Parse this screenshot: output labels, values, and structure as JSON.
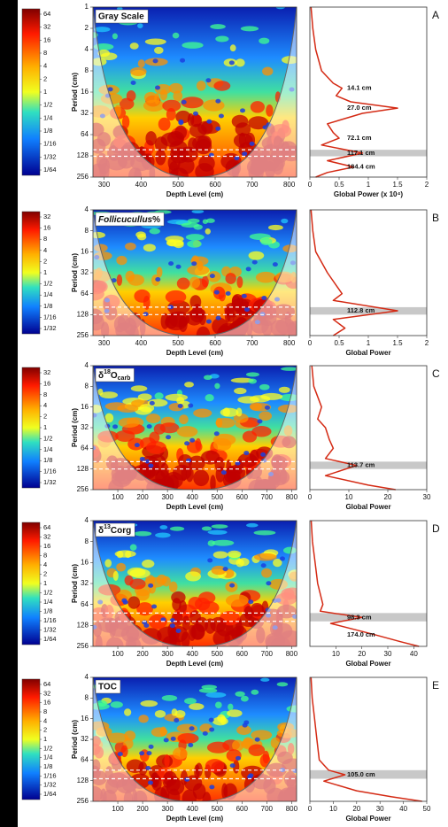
{
  "chart_data": [
    {
      "type": "wavelet",
      "panel": "A",
      "title": "Gray Scale",
      "xlabel": "Depth Level (cm)",
      "ylabel": "Period (cm)",
      "colorbar_ticks": [
        64,
        32,
        16,
        8,
        4,
        2,
        1,
        {
          "value": 0.5,
          "label": "1/2"
        },
        {
          "value": 0.25,
          "label": "1/4"
        },
        {
          "value": 0.125,
          "label": "1/8"
        },
        {
          "value": 0.0625,
          "label": "1/16"
        },
        {
          "value": 0.03125,
          "label": "1/32"
        },
        {
          "value": 0.015625,
          "label": "1/64"
        }
      ],
      "xlim": [
        270,
        820
      ],
      "xticks": [
        300,
        400,
        500,
        600,
        700,
        800
      ],
      "ylim": [
        1,
        256
      ],
      "yticks": [
        1,
        2,
        4,
        8,
        16,
        32,
        64,
        128,
        256
      ]
    },
    {
      "type": "line",
      "xlabel": "Global Power (x 10⁴)",
      "xlim": [
        0,
        2
      ],
      "xticks": [
        0,
        0.5,
        1,
        1.5,
        2
      ],
      "ylim": [
        1,
        256
      ],
      "color": "#d42a14",
      "periods": [
        1,
        2,
        4,
        8,
        12,
        14.1,
        18,
        22,
        27,
        32,
        45,
        60,
        72.1,
        90,
        117.1,
        150,
        184.4,
        220,
        256
      ],
      "values": [
        0.02,
        0.05,
        0.1,
        0.2,
        0.4,
        0.55,
        0.45,
        0.7,
        1.5,
        0.9,
        0.3,
        0.4,
        0.5,
        0.2,
        0.9,
        0.3,
        0.75,
        0.3,
        0.1
      ],
      "band": [
        105,
        130
      ],
      "annotations": [
        {
          "label": "14.1 cm",
          "value": 14.1
        },
        {
          "label": "27.0 cm",
          "value": 27.0
        },
        {
          "label": "72.1 cm",
          "value": 72.1
        },
        {
          "label": "117.1 cm",
          "value": 117.1
        },
        {
          "label": "184.4 cm",
          "value": 184.4
        }
      ]
    },
    {
      "type": "wavelet",
      "panel": "B",
      "title": [
        "Follicucullus",
        "%"
      ],
      "xlabel": "Depth Level (cm)",
      "ylabel": "Period (cm)",
      "colorbar_ticks": [
        32,
        16,
        8,
        4,
        2,
        1,
        {
          "value": 0.5,
          "label": "1/2"
        },
        {
          "value": 0.25,
          "label": "1/4"
        },
        {
          "value": 0.125,
          "label": "1/8"
        },
        {
          "value": 0.0625,
          "label": "1/16"
        },
        {
          "value": 0.03125,
          "label": "1/32"
        }
      ],
      "xlim": [
        270,
        820
      ],
      "xticks": [
        300,
        400,
        500,
        600,
        700,
        800
      ],
      "ylim": [
        4,
        256
      ],
      "yticks": [
        4,
        8,
        16,
        32,
        64,
        128,
        256
      ]
    },
    {
      "type": "line",
      "xlabel": "Global Power",
      "xlim": [
        0,
        2
      ],
      "xticks": [
        0,
        0.5,
        1,
        1.5,
        2
      ],
      "ylim": [
        4,
        256
      ],
      "color": "#d42a14",
      "periods": [
        4,
        8,
        16,
        32,
        64,
        80,
        112.8,
        150,
        200,
        256
      ],
      "values": [
        0.02,
        0.05,
        0.1,
        0.3,
        0.55,
        0.4,
        1.5,
        0.4,
        0.6,
        0.4
      ],
      "band": [
        100,
        128
      ],
      "annotations": [
        {
          "label": "112.8 cm",
          "value": 112.8
        }
      ]
    },
    {
      "type": "wavelet",
      "panel": "C",
      "title": [
        "δ",
        "18",
        "O",
        "carb"
      ],
      "xlabel": "Depth Level (cm)",
      "ylabel": "Period (cm)",
      "colorbar_ticks": [
        32,
        16,
        8,
        4,
        2,
        1,
        {
          "value": 0.5,
          "label": "1/2"
        },
        {
          "value": 0.25,
          "label": "1/4"
        },
        {
          "value": 0.125,
          "label": "1/8"
        },
        {
          "value": 0.0625,
          "label": "1/16"
        },
        {
          "value": 0.03125,
          "label": "1/32"
        }
      ],
      "xlim": [
        0,
        820
      ],
      "xticks": [
        100,
        200,
        300,
        400,
        500,
        600,
        700,
        800
      ],
      "ylim": [
        4,
        256
      ],
      "yticks": [
        4,
        8,
        16,
        32,
        64,
        128,
        256
      ]
    },
    {
      "type": "line",
      "xlabel": "Global Power",
      "xlim": [
        0,
        30
      ],
      "xticks": [
        0,
        10,
        20,
        30
      ],
      "ylim": [
        4,
        256
      ],
      "color": "#d42a14",
      "periods": [
        4,
        8,
        16,
        24,
        32,
        48,
        64,
        90,
        113.7,
        160,
        220,
        256
      ],
      "values": [
        0.5,
        1,
        3,
        2,
        4,
        5,
        6,
        4,
        12,
        4,
        15,
        22
      ],
      "band": [
        100,
        128
      ],
      "annotations": [
        {
          "label": "113.7 cm",
          "value": 113.7
        }
      ]
    },
    {
      "type": "wavelet",
      "panel": "D",
      "title": [
        "δ",
        "13",
        "Corg"
      ],
      "xlabel": "Depth Level (cm)",
      "ylabel": "Period (cm)",
      "colorbar_ticks": [
        64,
        32,
        16,
        8,
        4,
        2,
        1,
        {
          "value": 0.5,
          "label": "1/2"
        },
        {
          "value": 0.25,
          "label": "1/4"
        },
        {
          "value": 0.125,
          "label": "1/8"
        },
        {
          "value": 0.0625,
          "label": "1/16"
        },
        {
          "value": 0.03125,
          "label": "1/32"
        },
        {
          "value": 0.015625,
          "label": "1/64"
        }
      ],
      "xlim": [
        0,
        820
      ],
      "xticks": [
        100,
        200,
        300,
        400,
        500,
        600,
        700,
        800
      ],
      "ylim": [
        4,
        256
      ],
      "yticks": [
        4,
        8,
        16,
        32,
        64,
        128,
        256
      ]
    },
    {
      "type": "line",
      "xlabel": "Global Power",
      "xlim": [
        0,
        45
      ],
      "xticks": [
        10,
        20,
        30,
        40
      ],
      "ylim": [
        4,
        256
      ],
      "color": "#d42a14",
      "periods": [
        4,
        8,
        16,
        32,
        64,
        80,
        98.3,
        120,
        174.0,
        220,
        256
      ],
      "values": [
        0.5,
        1,
        2,
        3,
        5,
        4,
        20,
        8,
        25,
        35,
        42
      ],
      "band": [
        85,
        112
      ],
      "annotations": [
        {
          "label": "98.3 cm",
          "value": 98.3
        },
        {
          "label": "174.0 cm",
          "value": 174.0
        }
      ]
    },
    {
      "type": "wavelet",
      "panel": "E",
      "title": "TOC",
      "xlabel": "Depth Level (cm)",
      "ylabel": "Period (cm)",
      "colorbar_ticks": [
        64,
        32,
        16,
        8,
        4,
        2,
        1,
        {
          "value": 0.5,
          "label": "1/2"
        },
        {
          "value": 0.25,
          "label": "1/4"
        },
        {
          "value": 0.125,
          "label": "1/8"
        },
        {
          "value": 0.0625,
          "label": "1/16"
        },
        {
          "value": 0.03125,
          "label": "1/32"
        },
        {
          "value": 0.015625,
          "label": "1/64"
        }
      ],
      "xlim": [
        0,
        820
      ],
      "xticks": [
        100,
        200,
        300,
        400,
        500,
        600,
        700,
        800
      ],
      "ylim": [
        4,
        256
      ],
      "yticks": [
        4,
        8,
        16,
        32,
        64,
        128,
        256
      ]
    },
    {
      "type": "line",
      "xlabel": "Global Power",
      "xlim": [
        0,
        50
      ],
      "xticks": [
        0,
        10,
        20,
        30,
        40,
        50
      ],
      "ylim": [
        4,
        256
      ],
      "color": "#d42a14",
      "periods": [
        4,
        8,
        16,
        32,
        64,
        90,
        105.0,
        130,
        180,
        220,
        256
      ],
      "values": [
        0.5,
        1,
        2,
        3,
        4,
        8,
        15,
        6,
        20,
        35,
        48
      ],
      "band": [
        90,
        120
      ],
      "annotations": [
        {
          "label": "105.0 cm",
          "value": 105.0
        }
      ]
    }
  ]
}
